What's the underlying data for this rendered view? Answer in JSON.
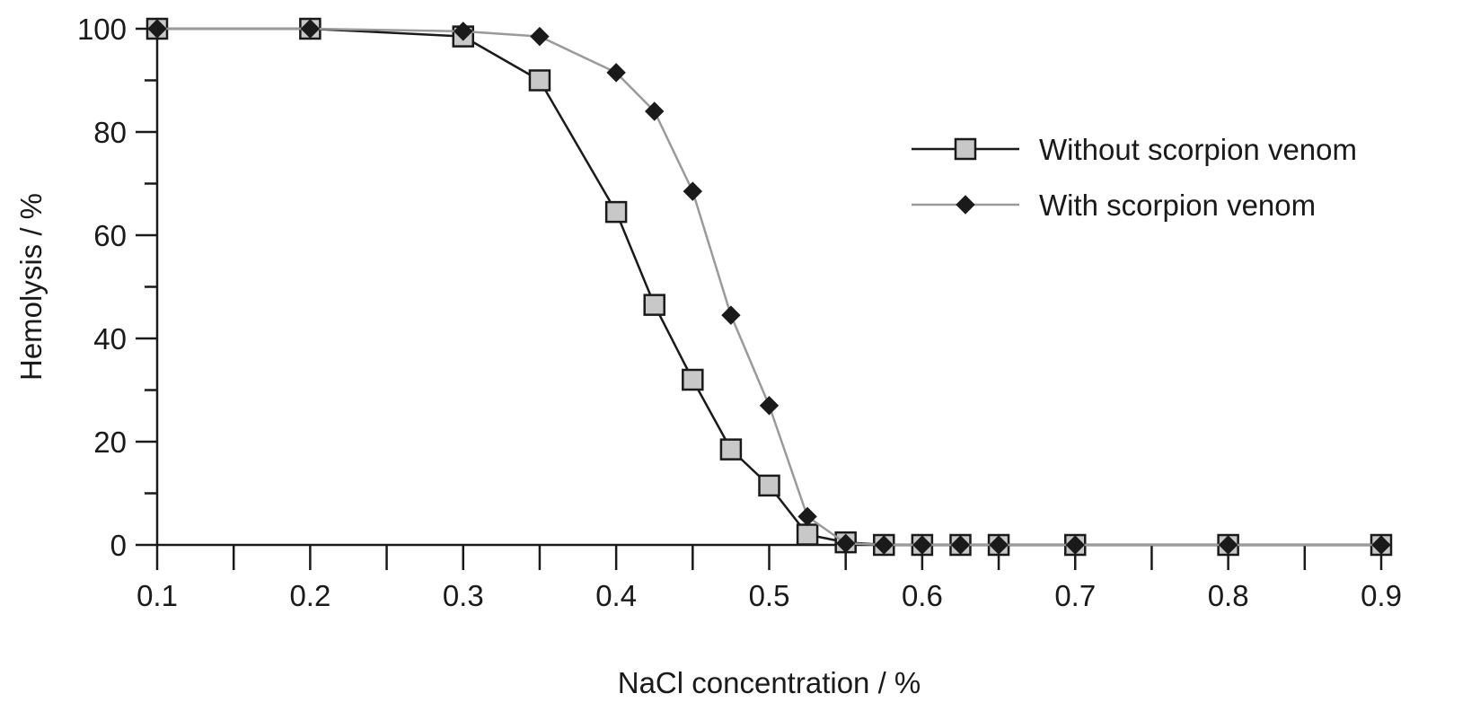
{
  "chart_data": {
    "type": "line",
    "title": "",
    "xlabel": "NaCl concentration / %",
    "ylabel": "Hemolysis / %",
    "xlim": [
      0.1,
      0.9
    ],
    "ylim": [
      0,
      100
    ],
    "x_ticks": [
      "0.1",
      "0.2",
      "0.3",
      "0.4",
      "0.5",
      "0.6",
      "0.7",
      "0.8",
      "0.9"
    ],
    "y_ticks": [
      "0",
      "20",
      "40",
      "60",
      "80",
      "100"
    ],
    "grid": false,
    "legend_position": "right",
    "series": [
      {
        "name": "Without scorpion venom",
        "marker": "square",
        "line_color": "#1a1a1a",
        "marker_fill": "#c8c8c8",
        "points": [
          [
            0.1,
            100
          ],
          [
            0.2,
            100
          ],
          [
            0.3,
            98.5
          ],
          [
            0.35,
            90
          ],
          [
            0.4,
            64.5
          ],
          [
            0.425,
            46.5
          ],
          [
            0.45,
            32
          ],
          [
            0.475,
            18.5
          ],
          [
            0.5,
            11.5
          ],
          [
            0.525,
            2
          ],
          [
            0.55,
            0.5
          ],
          [
            0.575,
            0
          ],
          [
            0.6,
            0
          ],
          [
            0.625,
            0
          ],
          [
            0.65,
            0
          ],
          [
            0.7,
            0
          ],
          [
            0.8,
            0
          ],
          [
            0.9,
            0
          ]
        ]
      },
      {
        "name": "With scorpion venom",
        "marker": "diamond",
        "line_color": "#9a9a9a",
        "marker_fill": "#1a1a1a",
        "points": [
          [
            0.1,
            100
          ],
          [
            0.2,
            100
          ],
          [
            0.3,
            99.5
          ],
          [
            0.35,
            98.5
          ],
          [
            0.4,
            91.5
          ],
          [
            0.425,
            84
          ],
          [
            0.45,
            68.5
          ],
          [
            0.475,
            44.5
          ],
          [
            0.5,
            27
          ],
          [
            0.525,
            5.5
          ],
          [
            0.55,
            0.3
          ],
          [
            0.575,
            0
          ],
          [
            0.6,
            0
          ],
          [
            0.625,
            0
          ],
          [
            0.65,
            0
          ],
          [
            0.7,
            0
          ],
          [
            0.8,
            0
          ],
          [
            0.9,
            0
          ]
        ]
      }
    ]
  }
}
